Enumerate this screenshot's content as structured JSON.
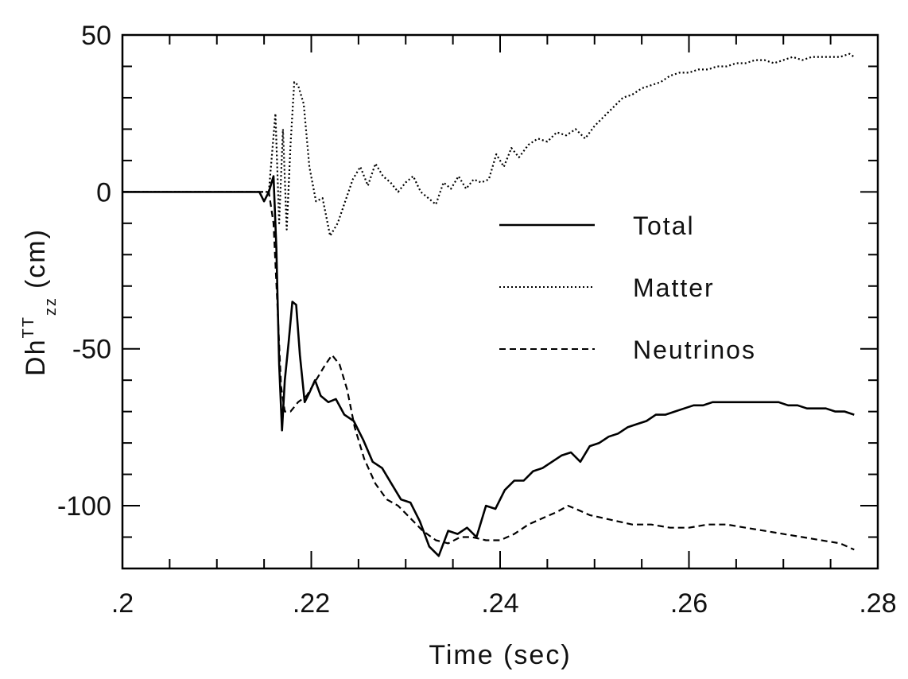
{
  "chart_data": {
    "type": "line",
    "xlabel": "Time (sec)",
    "ylabel_parts": {
      "base": "Dh",
      "sup": "TT",
      "sub": "zz",
      "unit": "(cm)"
    },
    "xlim": [
      0.2,
      0.28
    ],
    "ylim": [
      -120,
      50
    ],
    "xticks": [
      0.2,
      0.22,
      0.24,
      0.26,
      0.28
    ],
    "xtick_labels": [
      ".2",
      ".22",
      ".24",
      ".26",
      ".28"
    ],
    "yticks": [
      -100,
      -50,
      0,
      50
    ],
    "ytick_labels": [
      "-100",
      "-50",
      "0",
      "50"
    ],
    "grid": false,
    "legend_position": "center-right",
    "series": [
      {
        "name": "Total",
        "style": "solid",
        "x": [
          0.2,
          0.205,
          0.21,
          0.2145,
          0.215,
          0.2155,
          0.216,
          0.2163,
          0.2166,
          0.2169,
          0.2172,
          0.2176,
          0.218,
          0.2184,
          0.2188,
          0.2193,
          0.2198,
          0.2204,
          0.221,
          0.2218,
          0.2226,
          0.2235,
          0.2245,
          0.2255,
          0.2265,
          0.2275,
          0.2285,
          0.2295,
          0.2305,
          0.2315,
          0.2325,
          0.2335,
          0.2345,
          0.2355,
          0.2365,
          0.2375,
          0.2385,
          0.2395,
          0.2405,
          0.2415,
          0.2425,
          0.2435,
          0.2445,
          0.2455,
          0.2465,
          0.2475,
          0.2485,
          0.2495,
          0.2505,
          0.2515,
          0.2525,
          0.2535,
          0.2545,
          0.2555,
          0.2565,
          0.2575,
          0.2585,
          0.2595,
          0.2605,
          0.2615,
          0.2625,
          0.2635,
          0.2645,
          0.2655,
          0.2665,
          0.2675,
          0.2685,
          0.2695,
          0.2705,
          0.2715,
          0.2725,
          0.2735,
          0.2745,
          0.2755,
          0.2765,
          0.2775
        ],
        "y": [
          0,
          0,
          0,
          0,
          -3,
          0,
          5,
          -18,
          -55,
          -76,
          -60,
          -48,
          -35,
          -36,
          -52,
          -67,
          -64,
          -60,
          -65,
          -67,
          -66,
          -71,
          -73,
          -79,
          -86,
          -88,
          -93,
          -98,
          -99,
          -105,
          -113,
          -116,
          -108,
          -109,
          -107,
          -110,
          -100,
          -101,
          -95,
          -92,
          -92,
          -89,
          -88,
          -86,
          -84,
          -83,
          -86,
          -81,
          -80,
          -78,
          -77,
          -75,
          -74,
          -73,
          -71,
          -71,
          -70,
          -69,
          -68,
          -68,
          -67,
          -67,
          -67,
          -67,
          -67,
          -67,
          -67,
          -67,
          -68,
          -68,
          -69,
          -69,
          -69,
          -70,
          -70,
          -71
        ]
      },
      {
        "name": "Matter",
        "style": "dotted",
        "x": [
          0.2,
          0.205,
          0.21,
          0.2155,
          0.2162,
          0.2166,
          0.217,
          0.2174,
          0.2178,
          0.2182,
          0.2186,
          0.2192,
          0.2198,
          0.2205,
          0.2212,
          0.222,
          0.2228,
          0.2236,
          0.2244,
          0.2252,
          0.226,
          0.2268,
          0.2276,
          0.2284,
          0.2292,
          0.23,
          0.2308,
          0.2316,
          0.2324,
          0.2332,
          0.234,
          0.2348,
          0.2356,
          0.2364,
          0.2372,
          0.238,
          0.2388,
          0.2396,
          0.2404,
          0.2412,
          0.242,
          0.243,
          0.244,
          0.245,
          0.246,
          0.247,
          0.248,
          0.249,
          0.25,
          0.251,
          0.252,
          0.253,
          0.254,
          0.255,
          0.256,
          0.257,
          0.258,
          0.259,
          0.26,
          0.261,
          0.262,
          0.263,
          0.264,
          0.265,
          0.266,
          0.267,
          0.268,
          0.269,
          0.27,
          0.271,
          0.272,
          0.273,
          0.274,
          0.275,
          0.276,
          0.277,
          0.2775
        ],
        "y": [
          0,
          0,
          0,
          0,
          25,
          -10,
          20,
          -12,
          15,
          35,
          34,
          28,
          8,
          -3,
          -2,
          -14,
          -10,
          -3,
          4,
          8,
          2,
          9,
          5,
          3,
          0,
          3,
          5,
          0,
          -2,
          -4,
          3,
          1,
          5,
          1,
          4,
          3,
          4,
          12,
          8,
          14,
          11,
          15,
          17,
          16,
          19,
          18,
          20,
          17,
          21,
          24,
          27,
          30,
          31,
          33,
          34,
          35,
          37,
          38,
          38,
          39,
          39,
          40,
          40,
          41,
          41,
          42,
          42,
          41,
          42,
          43,
          42,
          43,
          43,
          43,
          43,
          44,
          43
        ]
      },
      {
        "name": "Neutrinos",
        "style": "dashed",
        "x": [
          0.2,
          0.205,
          0.21,
          0.2155,
          0.216,
          0.2164,
          0.2168,
          0.2172,
          0.2178,
          0.2186,
          0.2195,
          0.2205,
          0.2215,
          0.2222,
          0.223,
          0.2238,
          0.2246,
          0.2256,
          0.2268,
          0.228,
          0.2292,
          0.2305,
          0.2318,
          0.2332,
          0.2345,
          0.2358,
          0.237,
          0.2385,
          0.24,
          0.2415,
          0.243,
          0.2445,
          0.246,
          0.2472,
          0.248,
          0.2495,
          0.251,
          0.2525,
          0.254,
          0.256,
          0.258,
          0.26,
          0.262,
          0.264,
          0.266,
          0.268,
          0.27,
          0.272,
          0.274,
          0.276,
          0.2775
        ],
        "y": [
          0,
          0,
          0,
          0,
          -10,
          -35,
          -62,
          -70,
          -70,
          -67,
          -65,
          -60,
          -55,
          -52,
          -55,
          -63,
          -75,
          -85,
          -93,
          -98,
          -100,
          -104,
          -108,
          -111,
          -112,
          -110,
          -110,
          -111,
          -111,
          -109,
          -106,
          -104,
          -102,
          -100,
          -101,
          -103,
          -104,
          -105,
          -106,
          -106,
          -107,
          -107,
          -106,
          -106,
          -107,
          -108,
          -109,
          -110,
          -111,
          -112,
          -114
        ]
      }
    ]
  }
}
